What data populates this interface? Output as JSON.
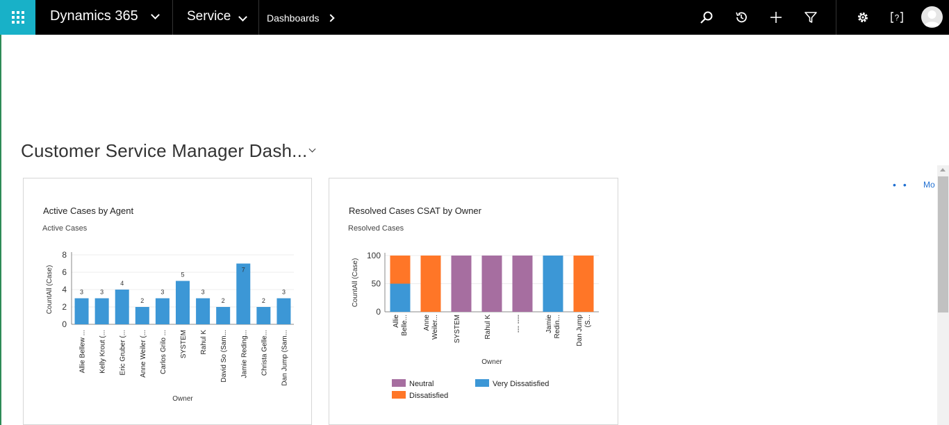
{
  "topbar": {
    "app_name": "Dynamics 365",
    "area_name": "Service",
    "breadcrumb": "Dashboards",
    "icons": [
      "search-icon",
      "recent-icon",
      "add-icon",
      "filter-icon",
      "settings-icon",
      "help-icon",
      "user-avatar"
    ],
    "colors": {
      "bar": "#000000",
      "waffle": "#18b1c8"
    }
  },
  "dashboard": {
    "title": "Customer Service Manager Dash...",
    "more_label": "Mo"
  },
  "chart_data": [
    {
      "type": "bar",
      "title": "Active Cases by Agent",
      "subtitle": "Active Cases",
      "xlabel": "Owner",
      "ylabel": "CountAll (Case)",
      "ylim": [
        0,
        8
      ],
      "yticks": [
        0,
        2,
        4,
        6,
        8
      ],
      "categories": [
        "Allie Bellew ...",
        "Kelly Krout (...",
        "Eric Gruber (...",
        "Anne Weiler (...",
        "Carlos Grilo ...",
        "SYSTEM",
        "Rahul K",
        "David So (Sam...",
        "Jamie Reding...",
        "Christa Gelle...",
        "Dan Jump (Sam..."
      ],
      "values": [
        3,
        3,
        4,
        2,
        3,
        5,
        3,
        2,
        7,
        2,
        3
      ],
      "color": "#3c97d6",
      "grid": true
    },
    {
      "type": "bar",
      "stacked": true,
      "title": "Resolved Cases CSAT by Owner",
      "subtitle": "Resolved Cases",
      "xlabel": "Owner",
      "ylabel": "CountAll (Case)",
      "ylim": [
        0,
        100
      ],
      "yticks": [
        0,
        50,
        100
      ],
      "categories": [
        [
          "Allie",
          "Belle..."
        ],
        [
          "Anne",
          "Weiler..."
        ],
        [
          "SYSTEM"
        ],
        [
          "Rahul K"
        ],
        [
          "--- ----"
        ],
        [
          "Jamie",
          "Redin..."
        ],
        [
          "Dan Jump",
          "(S..."
        ]
      ],
      "series": [
        {
          "name": "Very Dissatisfied",
          "color": "#3c97d6",
          "values": [
            50,
            0,
            0,
            0,
            0,
            100,
            0
          ]
        },
        {
          "name": "Dissatisfied",
          "color": "#ff7627",
          "values": [
            50,
            100,
            0,
            0,
            0,
            0,
            100
          ]
        },
        {
          "name": "Neutral",
          "color": "#a66ea0",
          "values": [
            0,
            0,
            100,
            100,
            100,
            0,
            0
          ]
        }
      ],
      "legend": [
        "Neutral",
        "Very Dissatisfied",
        "Dissatisfied"
      ],
      "legend_position": "bottom",
      "grid": true
    }
  ]
}
